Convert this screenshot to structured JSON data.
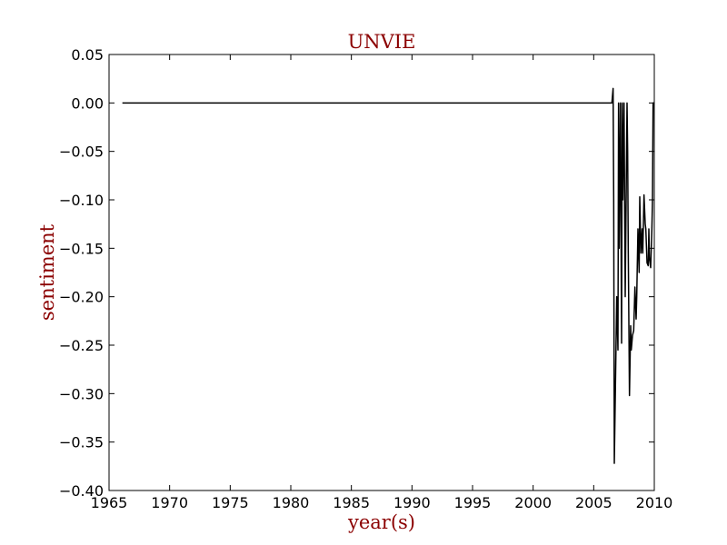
{
  "chart_data": {
    "type": "line",
    "title": "UNVIE",
    "xlabel": "year(s)",
    "ylabel": "sentiment",
    "xlim": [
      1965,
      2010
    ],
    "ylim": [
      -0.4,
      0.05
    ],
    "x_ticks": [
      "1965",
      "1970",
      "1975",
      "1980",
      "1985",
      "1990",
      "1995",
      "2000",
      "2005",
      "2010"
    ],
    "y_ticks": [
      "0.05",
      "0.00",
      "−0.05",
      "−0.10",
      "−0.15",
      "−0.20",
      "−0.25",
      "−0.30",
      "−0.35",
      "−0.40"
    ],
    "grid": false,
    "colors": {
      "line": "#000000",
      "label": "#8b0000",
      "axes": "#000000"
    },
    "series": [
      {
        "x": [
          1966.1,
          2006.0,
          2006.5,
          2006.6,
          2006.65,
          2006.7,
          2006.9,
          2007.0,
          2007.05,
          2007.1,
          2007.2,
          2007.3,
          2007.35,
          2007.4,
          2007.5,
          2007.6,
          2007.75,
          2007.8,
          2007.85,
          2007.95,
          2008.05,
          2008.1,
          2008.2,
          2008.3,
          2008.4,
          2008.5,
          2008.55,
          2008.65,
          2008.75,
          2008.8,
          2008.9,
          2009.0,
          2009.05,
          2009.15,
          2009.25,
          2009.3,
          2009.4,
          2009.5,
          2009.55,
          2009.6,
          2009.7,
          2009.8,
          2009.85,
          2009.9,
          2010.0
        ],
        "y": [
          0.0,
          0.0,
          0.0,
          0.015,
          -0.1,
          -0.372,
          -0.2,
          -0.255,
          0.0,
          -0.15,
          0.0,
          -0.248,
          0.0,
          -0.1,
          0.0,
          -0.2,
          0.0,
          -0.05,
          -0.15,
          -0.302,
          -0.23,
          -0.255,
          -0.24,
          -0.235,
          -0.19,
          -0.223,
          -0.2,
          -0.13,
          -0.175,
          -0.097,
          -0.155,
          -0.13,
          -0.155,
          -0.095,
          -0.125,
          -0.13,
          -0.165,
          -0.168,
          -0.13,
          -0.16,
          -0.17,
          -0.13,
          -0.1,
          0.0,
          0.0
        ]
      }
    ]
  }
}
